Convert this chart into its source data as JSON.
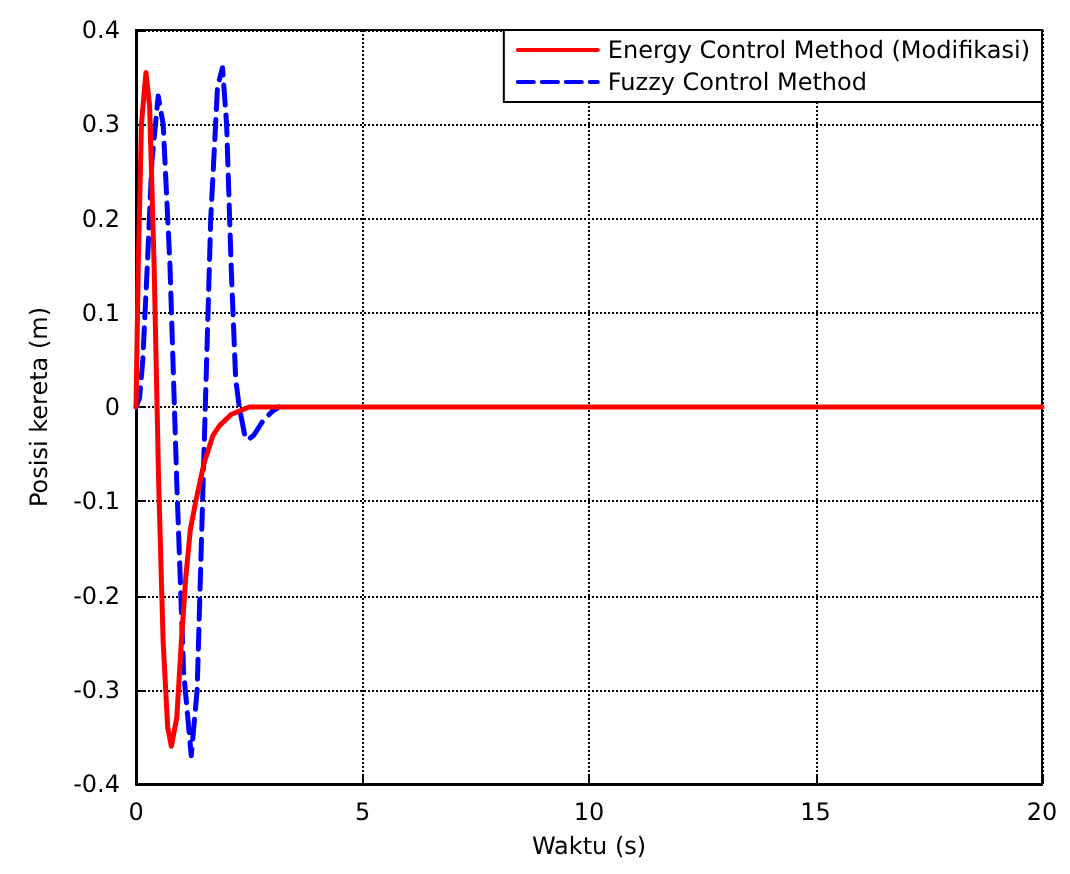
{
  "chart_data": {
    "type": "line",
    "xlabel": "Waktu (s)",
    "ylabel": "Posisi kereta (m)",
    "xlim": [
      0,
      20
    ],
    "xticks": [
      0,
      5,
      10,
      15,
      20
    ],
    "ylim": [
      -0.4,
      0.4
    ],
    "yticks": [
      -0.4,
      -0.3,
      -0.2,
      -0.1,
      0,
      0.1,
      0.2,
      0.3,
      0.4
    ],
    "grid": true,
    "legend": "top right",
    "marker": "none",
    "series": [
      {
        "name": "Fuzzy Control Method",
        "color": "#0000ff",
        "line_style": "dashed",
        "x": [
          0,
          0.08,
          0.15,
          0.25,
          0.35,
          0.49,
          0.6,
          0.75,
          0.9,
          1.05,
          1.22,
          1.35,
          1.5,
          1.65,
          1.8,
          1.91,
          2.0,
          2.1,
          2.2,
          2.28,
          2.4,
          2.47,
          2.6,
          2.8,
          3.0,
          3.16
        ],
        "values": [
          0,
          0.01,
          0.05,
          0.15,
          0.26,
          0.33,
          0.3,
          0.15,
          -0.08,
          -0.28,
          -0.37,
          -0.3,
          -0.05,
          0.2,
          0.34,
          0.36,
          0.3,
          0.15,
          0.03,
          0,
          -0.03,
          -0.035,
          -0.03,
          -0.015,
          -0.005,
          0
        ]
      },
      {
        "name": "Energy Control Method (Modifikasi)",
        "color": "#ff0000",
        "line_style": "solid",
        "x": [
          0,
          0.05,
          0.12,
          0.22,
          0.3,
          0.4,
          0.5,
          0.6,
          0.7,
          0.78,
          0.9,
          1.0,
          1.1,
          1.2,
          1.32,
          1.5,
          1.7,
          1.84,
          2.1,
          2.5,
          5,
          10,
          15,
          20
        ],
        "values": [
          0,
          0.15,
          0.3,
          0.355,
          0.32,
          0.15,
          -0.08,
          -0.25,
          -0.34,
          -0.36,
          -0.33,
          -0.25,
          -0.18,
          -0.13,
          -0.1,
          -0.06,
          -0.03,
          -0.02,
          -0.008,
          0,
          0,
          0,
          0,
          0
        ]
      }
    ]
  }
}
